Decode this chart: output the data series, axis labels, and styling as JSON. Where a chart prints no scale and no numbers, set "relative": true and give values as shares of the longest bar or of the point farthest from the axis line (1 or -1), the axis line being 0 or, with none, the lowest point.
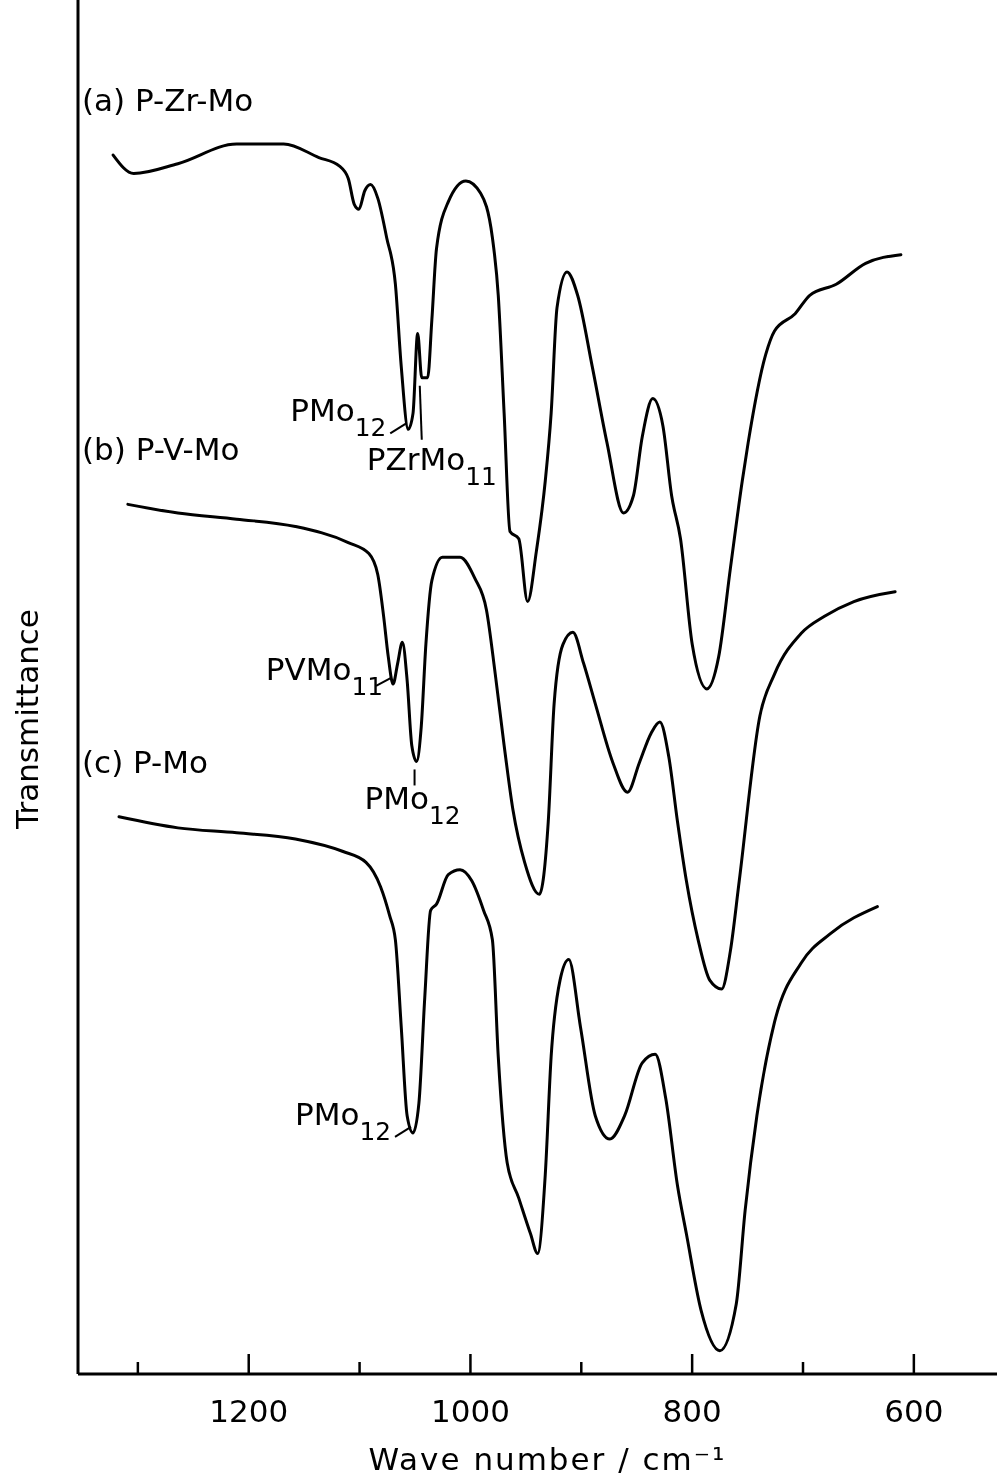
{
  "chart_data": {
    "type": "line",
    "relative": true,
    "xlabel": "Wave number / cm⁻¹",
    "ylabel": "Transmittance",
    "xlim": [
      1354,
      525
    ],
    "xticks": [
      {
        "value": 1300,
        "label": null
      },
      1200,
      {
        "value": 1100,
        "label": null
      },
      1000,
      {
        "value": 900,
        "label": null
      },
      800,
      {
        "value": 700,
        "label": null
      },
      600
    ],
    "grid": false,
    "legend": false,
    "marker": "none",
    "line_style": "solid",
    "series": [
      {
        "name": "(a) P-Zr-Mo",
        "color": "#000000",
        "x": [
          1322.3,
          1303.7,
          1263.9,
          1210.9,
          1168.5,
          1136.7,
          1118.1,
          1110.2,
          1104.8,
          1100.6,
          1095.3,
          1090.0,
          1083.6,
          1075.6,
          1067.7,
          1062.4,
          1056.1,
          1051.8,
          1047.6,
          1043.9,
          1038.6,
          1034.8,
          1030.6,
          1020.0,
          1004.1,
          990.8,
          980.2,
          974.9,
          969.6,
          964.3,
          956.4,
          948.4,
          940.5,
          932.5,
          927.2,
          921.9,
          912.9,
          903.3,
          890.1,
          876.8,
          861.9,
          853.0,
          845.0,
          835.5,
          826.4,
          818.5,
          810.5,
          799.9,
          786.7,
          776.1,
          765.5,
          754.8,
          749.5,
          733.6,
          725.7,
          707.1,
          693.9,
          670.0,
          643.5,
          611.7
        ],
        "values": [
          0.991,
          0.976,
          0.984,
          1,
          1,
          0.989,
          0.982,
          0.972,
          0.951,
          0.947,
          0.962,
          0.967,
          0.956,
          0.924,
          0.886,
          0.819,
          0.768,
          0.781,
          0.846,
          0.81,
          0.81,
          0.857,
          0.915,
          0.953,
          0.97,
          0.96,
          0.924,
          0.877,
          0.781,
          0.685,
          0.679,
          0.628,
          0.669,
          0.726,
          0.781,
          0.867,
          0.896,
          0.877,
          0.819,
          0.757,
          0.7,
          0.714,
          0.762,
          0.793,
          0.771,
          0.714,
          0.679,
          0.593,
          0.557,
          0.583,
          0.655,
          0.726,
          0.757,
          0.829,
          0.848,
          0.862,
          0.877,
          0.886,
          0.903,
          0.91
        ]
      },
      {
        "name": "(b) P-V-Mo",
        "color": "#000000",
        "x": [
          1309.0,
          1263.9,
          1210.9,
          1157.9,
          1110.2,
          1091.6,
          1083.6,
          1078.3,
          1074.1,
          1069.8,
          1065.6,
          1061.4,
          1057.1,
          1052.9,
          1048.6,
          1044.4,
          1040.2,
          1034.8,
          1025.3,
          1009.4,
          996.1,
          985.5,
          977.6,
          969.6,
          961.7,
          951.1,
          937.8,
          929.8,
          924.5,
          916.6,
          907.6,
          898.0,
          887.4,
          871.5,
          858.3,
          847.6,
          837.0,
          829.1,
          821.1,
          813.2,
          805.2,
          794.6,
          784.0,
          773.4,
          765.5,
          757.5,
          738.9,
          725.7,
          701.8,
          680.6,
          654.1,
          616.9
        ],
        "values": [
          0.707,
          0.7,
          0.695,
          0.689,
          0.676,
          0.667,
          0.65,
          0.616,
          0.583,
          0.561,
          0.578,
          0.595,
          0.564,
          0.511,
          0.498,
          0.526,
          0.593,
          0.645,
          0.664,
          0.664,
          0.647,
          0.621,
          0.569,
          0.511,
          0.459,
          0.416,
          0.39,
          0.449,
          0.545,
          0.593,
          0.603,
          0.578,
          0.545,
          0.497,
          0.473,
          0.497,
          0.521,
          0.53,
          0.502,
          0.449,
          0.401,
          0.353,
          0.32,
          0.313,
          0.344,
          0.401,
          0.535,
          0.569,
          0.602,
          0.616,
          0.628,
          0.636
        ]
      },
      {
        "name": "(c) P-Mo",
        "color": "#000000",
        "x": [
          1317.0,
          1263.9,
          1210.9,
          1157.9,
          1115.5,
          1094.2,
          1081.0,
          1073.0,
          1067.7,
          1062.4,
          1057.1,
          1051.8,
          1046.5,
          1041.2,
          1035.9,
          1030.6,
          1020.0,
          1009.4,
          998.8,
          988.2,
          980.2,
          974.9,
          966.9,
          956.4,
          945.8,
          939.4,
          932.5,
          927.2,
          919.2,
          911.3,
          900.7,
          887.4,
          874.2,
          860.9,
          845.0,
          833.3,
          823.8,
          813.2,
          805.2,
          792.0,
          775.0,
          760.2,
          752.2,
          741.6,
          725.7,
          701.8,
          675.3,
          632.9
        ],
        "values": [
          0.453,
          0.444,
          0.44,
          0.435,
          0.425,
          0.416,
          0.396,
          0.373,
          0.353,
          0.282,
          0.21,
          0.196,
          0.22,
          0.306,
          0.377,
          0.382,
          0.406,
          0.41,
          0.401,
          0.377,
          0.353,
          0.258,
          0.172,
          0.143,
          0.114,
          0.098,
          0.162,
          0.258,
          0.32,
          0.337,
          0.282,
          0.21,
          0.191,
          0.21,
          0.253,
          0.26,
          0.224,
          0.153,
          0.114,
          0.052,
          0.019,
          0.057,
          0.133,
          0.21,
          0.286,
          0.334,
          0.358,
          0.38
        ]
      }
    ],
    "annotations": [
      {
        "text": "PMo$_{12}$",
        "x": 1056.1,
        "y": 0.768
      },
      {
        "text": "PZrMo$_{11}$",
        "x": 1043.9,
        "y": 0.81
      },
      {
        "text": "PVMo$_{11}$",
        "x": 1069.8,
        "y": 0.561
      },
      {
        "text": "PMo$_{12}$",
        "x": 1048.6,
        "y": 0.498
      },
      {
        "text": "PMo$_{12}$",
        "x": 1051.8,
        "y": 0.196
      }
    ]
  }
}
